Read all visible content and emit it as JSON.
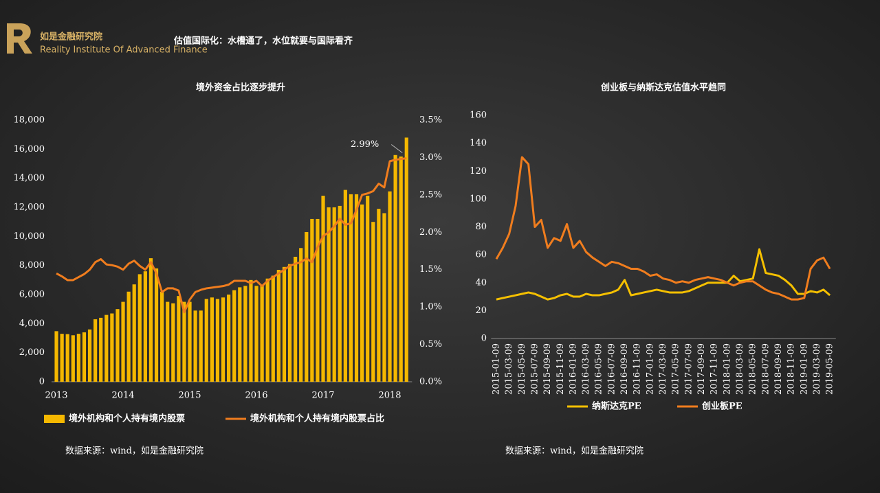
{
  "header": {
    "logo_name": "如是金融研究院",
    "logo_subtitle": "Reality Institute Of Advanced Finance",
    "title": "估值国际化：水槽通了，水位就要与国际看齐"
  },
  "sources": [
    "数据来源：wind，如是金融研究院",
    "数据来源：wind，如是金融研究院"
  ],
  "chart_data": [
    {
      "type": "combo",
      "title": "境外资金占比逐步提升",
      "categories": [
        "2013",
        null,
        null,
        null,
        null,
        null,
        null,
        null,
        null,
        null,
        null,
        null,
        "2014",
        null,
        null,
        null,
        null,
        null,
        null,
        null,
        null,
        null,
        null,
        null,
        "2015",
        null,
        null,
        null,
        null,
        null,
        null,
        null,
        null,
        null,
        null,
        null,
        "2016",
        null,
        null,
        null,
        null,
        null,
        null,
        null,
        null,
        null,
        null,
        null,
        "2017",
        null,
        null,
        null,
        null,
        null,
        null,
        null,
        null,
        null,
        null,
        null,
        "2018",
        null,
        null,
        null
      ],
      "series": [
        {
          "name": "境外机构和个人持有境内股票",
          "type": "bar",
          "color": "#f5b800",
          "values": [
            3480,
            3300,
            3280,
            3200,
            3300,
            3400,
            3600,
            4300,
            4400,
            4600,
            4700,
            5000,
            5500,
            6200,
            6700,
            7400,
            7600,
            8500,
            7800,
            6200,
            5500,
            5400,
            5900,
            5500,
            5500,
            4900,
            4900,
            5700,
            5800,
            5700,
            5800,
            6000,
            6300,
            6500,
            6600,
            7000,
            6600,
            6600,
            7100,
            7300,
            7700,
            7900,
            8100,
            8600,
            9200,
            10300,
            11200,
            11200,
            12800,
            12000,
            12000,
            12100,
            13200,
            12900,
            12900,
            12200,
            12800,
            11000,
            11900,
            11600,
            13100,
            15600,
            15500,
            16800
          ]
        },
        {
          "name": "境外机构和个人持有境内股票占比",
          "type": "line",
          "axis": "y2",
          "color": "#f07d1e",
          "values": [
            1.45,
            1.41,
            1.36,
            1.36,
            1.4,
            1.44,
            1.5,
            1.6,
            1.64,
            1.57,
            1.56,
            1.54,
            1.5,
            1.58,
            1.62,
            1.55,
            1.5,
            1.6,
            1.45,
            1.2,
            1.25,
            1.25,
            1.22,
            0.93,
            1.1,
            1.2,
            1.23,
            1.25,
            1.26,
            1.27,
            1.28,
            1.3,
            1.35,
            1.35,
            1.35,
            1.32,
            1.35,
            1.28,
            1.35,
            1.4,
            1.45,
            1.5,
            1.55,
            1.58,
            1.6,
            1.65,
            1.6,
            1.8,
            1.95,
            2.0,
            2.08,
            2.18,
            2.1,
            2.12,
            2.3,
            2.5,
            2.52,
            2.55,
            2.65,
            2.6,
            2.95,
            2.97,
            2.98,
            2.99
          ],
          "value_labels": [
            null,
            null,
            null,
            null,
            null,
            null,
            null,
            null,
            null,
            null,
            null,
            null,
            null,
            null,
            null,
            null,
            null,
            null,
            null,
            null,
            null,
            null,
            null,
            null,
            null,
            null,
            null,
            null,
            null,
            null,
            null,
            null,
            null,
            null,
            null,
            null,
            null,
            null,
            null,
            null,
            null,
            null,
            null,
            null,
            null,
            null,
            null,
            null,
            null,
            null,
            null,
            null,
            null,
            null,
            null,
            null,
            null,
            null,
            null,
            null,
            null,
            null,
            null,
            "2.99%"
          ]
        }
      ],
      "ylim": [
        0,
        18000
      ],
      "yticks": [
        0,
        {
          "value": 2000,
          "label": "2,000"
        },
        {
          "value": 4000,
          "label": "4,000"
        },
        {
          "value": 6000,
          "label": "6,000"
        },
        {
          "value": 8000,
          "label": "8,000"
        },
        {
          "value": 10000,
          "label": "10,000"
        },
        {
          "value": 12000,
          "label": "12,000"
        },
        {
          "value": 14000,
          "label": "14,000"
        },
        {
          "value": 16000,
          "label": "16,000"
        },
        {
          "value": 18000,
          "label": "18,000"
        }
      ],
      "y2lim": [
        0,
        3.5
      ],
      "y2ticks": [
        {
          "value": 0,
          "label": "0.0%"
        },
        {
          "value": 0.5,
          "label": "0.5%"
        },
        {
          "value": 1,
          "label": "1.0%"
        },
        {
          "value": 1.5,
          "label": "1.5%"
        },
        {
          "value": 2,
          "label": "2.0%"
        },
        {
          "value": 2.5,
          "label": "2.5%"
        },
        {
          "value": 3,
          "label": "3.0%"
        },
        {
          "value": 3.5,
          "label": "3.5%"
        }
      ],
      "grid": false,
      "legend": "bottom"
    },
    {
      "type": "line",
      "title": "创业板与纳斯达克估值水平趋同",
      "categories": [
        "2015-01-09",
        null,
        "2015-03-09",
        null,
        "2015-05-09",
        null,
        "2015-07-09",
        null,
        "2015-09-09",
        null,
        "2015-11-09",
        null,
        "2016-01-09",
        null,
        "2016-03-09",
        null,
        "2016-05-09",
        null,
        "2016-07-09",
        null,
        "2016-09-09",
        null,
        "2016-11-09",
        null,
        "2017-01-09",
        null,
        "2017-03-09",
        null,
        "2017-05-09",
        null,
        "2017-07-09",
        null,
        "2017-09-09",
        null,
        "2017-11-09",
        null,
        "2018-01-09",
        null,
        "2018-03-09",
        null,
        "2018-05-09",
        null,
        "2018-07-09",
        null,
        "2018-09-09",
        null,
        "2018-11-09",
        null,
        "2019-01-09",
        null,
        "2019-03-09",
        null,
        "2019-05-09"
      ],
      "series": [
        {
          "name": "纳斯达克PE",
          "color": "#f5c000",
          "values": [
            28,
            29,
            30,
            31,
            32,
            33,
            32,
            30,
            28,
            29,
            31,
            32,
            30,
            30,
            32,
            31,
            31,
            32,
            33,
            35,
            42,
            31,
            32,
            33,
            34,
            35,
            34,
            33,
            33,
            33,
            34,
            36,
            38,
            40,
            40,
            40,
            40,
            45,
            41,
            42,
            43,
            64,
            47,
            46,
            45,
            42,
            38,
            32,
            32,
            34,
            33,
            35,
            31
          ]
        },
        {
          "name": "创业板PE",
          "color": "#f07d1e",
          "values": [
            57,
            65,
            75,
            95,
            130,
            125,
            80,
            85,
            65,
            72,
            70,
            82,
            65,
            70,
            62,
            58,
            55,
            52,
            55,
            54,
            52,
            50,
            50,
            48,
            45,
            46,
            43,
            42,
            40,
            41,
            40,
            42,
            43,
            44,
            43,
            42,
            40,
            38,
            40,
            41,
            41,
            38,
            35,
            33,
            32,
            30,
            28,
            28,
            29,
            50,
            56,
            58,
            50
          ]
        }
      ],
      "ylim": [
        0,
        160
      ],
      "yticks": [
        0,
        20,
        40,
        60,
        80,
        100,
        120,
        140,
        160
      ],
      "grid": false,
      "legend": "bottom"
    }
  ]
}
